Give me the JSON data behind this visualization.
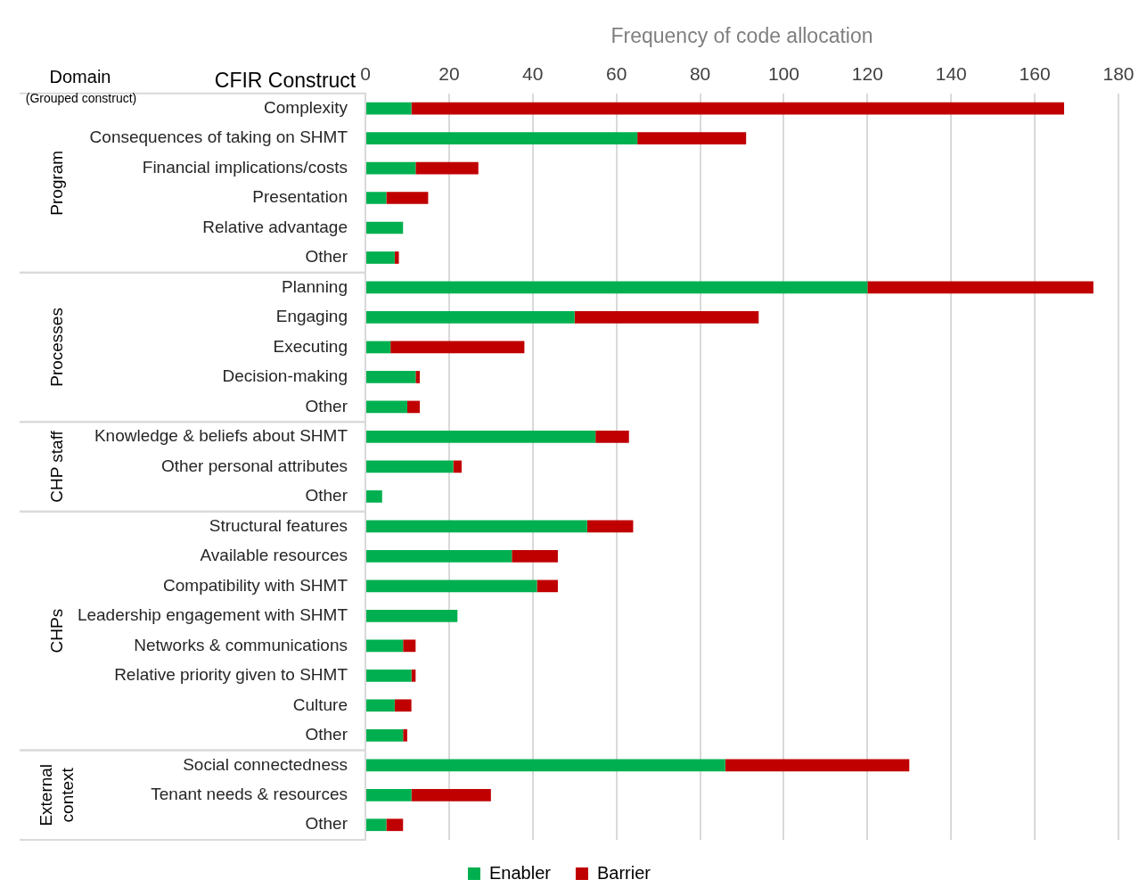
{
  "chart_data": {
    "type": "bar",
    "orientation": "horizontal",
    "stacked": true,
    "xlabel": "Frequency of code allocation",
    "categories": [
      "Complexity",
      "Consequences of taking on SHMT",
      "Financial implications/costs",
      "Presentation",
      "Relative advantage",
      "Other",
      "Planning",
      "Engaging",
      "Executing",
      "Decision-making",
      "Other",
      "Knowledge & beliefs about SHMT",
      "Other personal attributes",
      "Other",
      "Structural features",
      "Available resources",
      "Compatibility with SHMT",
      "Leadership engagement with SHMT",
      "Networks & communications",
      "Relative priority given to SHMT",
      "Culture",
      "Other",
      "Social connectedness",
      "Tenant needs & resources",
      "Other"
    ],
    "series": [
      {
        "name": "Enabler",
        "color": "#00b050",
        "values": [
          11,
          65,
          12,
          5,
          9,
          7,
          120,
          50,
          6,
          12,
          10,
          55,
          21,
          4,
          53,
          35,
          41,
          22,
          9,
          11,
          7,
          9,
          86,
          11,
          5
        ]
      },
      {
        "name": "Barrier",
        "color": "#c00000",
        "values": [
          156,
          26,
          15,
          10,
          0,
          1,
          54,
          44,
          32,
          1,
          3,
          8,
          2,
          0,
          11,
          11,
          5,
          0,
          3,
          1,
          4,
          1,
          44,
          19,
          4
        ]
      }
    ],
    "xlim": [
      0,
      180
    ],
    "xticks": [
      0,
      20,
      40,
      60,
      80,
      100,
      120,
      140,
      160,
      180
    ],
    "grid": "x",
    "legend": "bottom",
    "annotations": [
      "Domain",
      "(Grouped construct)",
      "CFIR Construct",
      "Program",
      "Processes",
      "CHP staff",
      "CHPs",
      "External context"
    ]
  }
}
